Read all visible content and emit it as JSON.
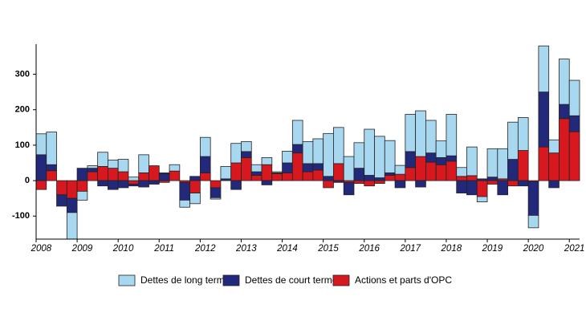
{
  "chart_data": {
    "type": "stacked-bar",
    "categories": [
      "2008",
      null,
      null,
      null,
      "2009",
      null,
      null,
      null,
      "2010",
      null,
      null,
      null,
      "2011",
      null,
      null,
      null,
      "2012",
      null,
      null,
      null,
      "2013",
      null,
      null,
      null,
      "2014",
      null,
      null,
      null,
      "2015",
      null,
      null,
      null,
      "2016",
      null,
      null,
      null,
      "2017",
      null,
      null,
      null,
      "2018",
      null,
      null,
      null,
      "2019",
      null,
      null,
      null,
      "2020",
      null,
      null,
      null,
      "2021"
    ],
    "series": [
      {
        "name": "Dettes de long terme",
        "color": "#a8d8f0",
        "values": [
          59,
          92,
          0,
          -75,
          -25,
          7,
          40,
          23,
          35,
          10,
          51,
          0,
          2,
          18,
          -20,
          -30,
          54,
          -4,
          35,
          55,
          28,
          20,
          20,
          3,
          33,
          68,
          62,
          70,
          121,
          102,
          68,
          72,
          130,
          117,
          91,
          25,
          105,
          129,
          92,
          47,
          117,
          25,
          81,
          -15,
          80,
          85,
          105,
          93,
          -35,
          130,
          37,
          128,
          100
        ]
      },
      {
        "name": "Dettes de court terme",
        "color": "#23297a",
        "values": [
          73,
          17,
          -32,
          -40,
          35,
          10,
          -15,
          -25,
          -20,
          -5,
          -18,
          -10,
          20,
          0,
          -50,
          12,
          46,
          -28,
          5,
          -25,
          17,
          10,
          -12,
          2,
          28,
          24,
          23,
          18,
          12,
          -5,
          -35,
          35,
          15,
          8,
          7,
          -20,
          45,
          -18,
          26,
          20,
          15,
          -35,
          -40,
          5,
          10,
          -40,
          60,
          -15,
          -95,
          155,
          -20,
          40,
          45
        ]
      },
      {
        "name": "Actions et parts d'OPC",
        "color": "#d7191f",
        "values": [
          -25,
          28,
          -40,
          -50,
          -30,
          25,
          40,
          35,
          25,
          -10,
          22,
          42,
          -5,
          27,
          -5,
          -35,
          22,
          -20,
          0,
          50,
          65,
          15,
          45,
          20,
          22,
          78,
          25,
          30,
          -20,
          48,
          -5,
          -8,
          -15,
          -8,
          15,
          18,
          37,
          68,
          52,
          45,
          55,
          12,
          14,
          -45,
          -10,
          5,
          -15,
          85,
          -3,
          95,
          78,
          175,
          138
        ]
      }
    ],
    "ylim": [
      -165,
      385
    ],
    "yticks": [
      -100,
      0,
      100,
      200,
      300
    ]
  }
}
